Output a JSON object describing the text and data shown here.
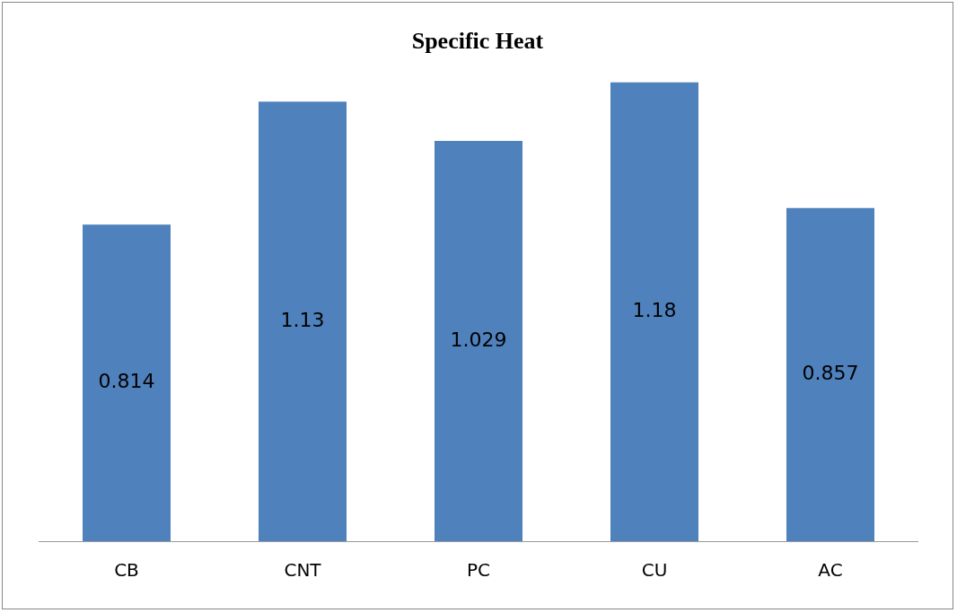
{
  "chart_data": {
    "type": "bar",
    "title": "Specific Heat",
    "categories": [
      "CB",
      "CNT",
      "PC",
      "CU",
      "AC"
    ],
    "values": [
      0.814,
      1.13,
      1.029,
      1.18,
      0.857
    ],
    "color": "#4f81bd",
    "data_labels": true,
    "grid": false,
    "legend": false
  }
}
